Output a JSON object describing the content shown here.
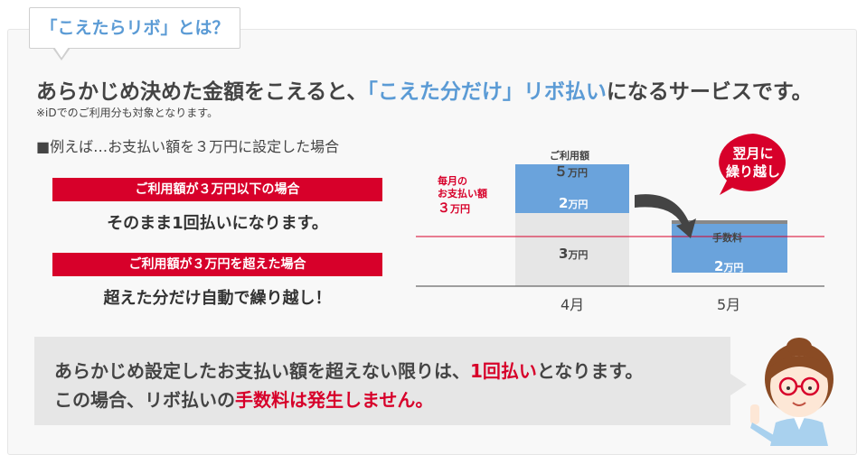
{
  "title_tag": "「こえたらリボ」とは？",
  "headline": {
    "prefix": "あらかじめ決めた金額をこえると、",
    "highlight": "「こえた分だけ」リボ払い",
    "suffix": "になるサービスです。"
  },
  "note": "※iDでのご利用分も対象となります。",
  "example_label": "■例えば…お支払い額を３万円に設定した場合",
  "cases": [
    {
      "bar": "ご利用額が３万円以下の場合",
      "text": "そのまま1回払いになります。"
    },
    {
      "bar": "ご利用額が３万円を超えた場合",
      "text": "超えた分だけ自動で繰り越し！"
    }
  ],
  "chart": {
    "monthly_label_1": "毎月の",
    "monthly_label_2": "お支払い額",
    "monthly_value": "３",
    "monthly_unit": "万円",
    "usage_label": "ご利用額",
    "usage_value": "５",
    "usage_unit": "万円",
    "fee_label": "手数料",
    "callout_1": "翌月に",
    "callout_2": "繰り越し",
    "colors": {
      "threshold_line": "#d7002a",
      "carried": "#6aa3dc",
      "paid": "#e6e6e6",
      "fee": "#888888"
    }
  },
  "chart_data": {
    "type": "bar",
    "categories": [
      "4月",
      "5月"
    ],
    "stack_labels": {
      "april_bottom": {
        "value": "3",
        "unit": "万円"
      },
      "april_top": {
        "value": "2",
        "unit": "万円"
      },
      "may": {
        "value": "2",
        "unit": "万円"
      }
    },
    "series": [
      {
        "values": [
          3,
          0
        ]
      },
      {
        "values": [
          2,
          2
        ]
      }
    ],
    "threshold": 3
  },
  "info": {
    "line1_a": "あらかじめ設定したお支払い額を超えない限りは、",
    "line1_b": "1回払い",
    "line1_c": "となります。",
    "line2_a": "この場合、リボ払いの",
    "line2_b": "手数料は発生しません。"
  }
}
